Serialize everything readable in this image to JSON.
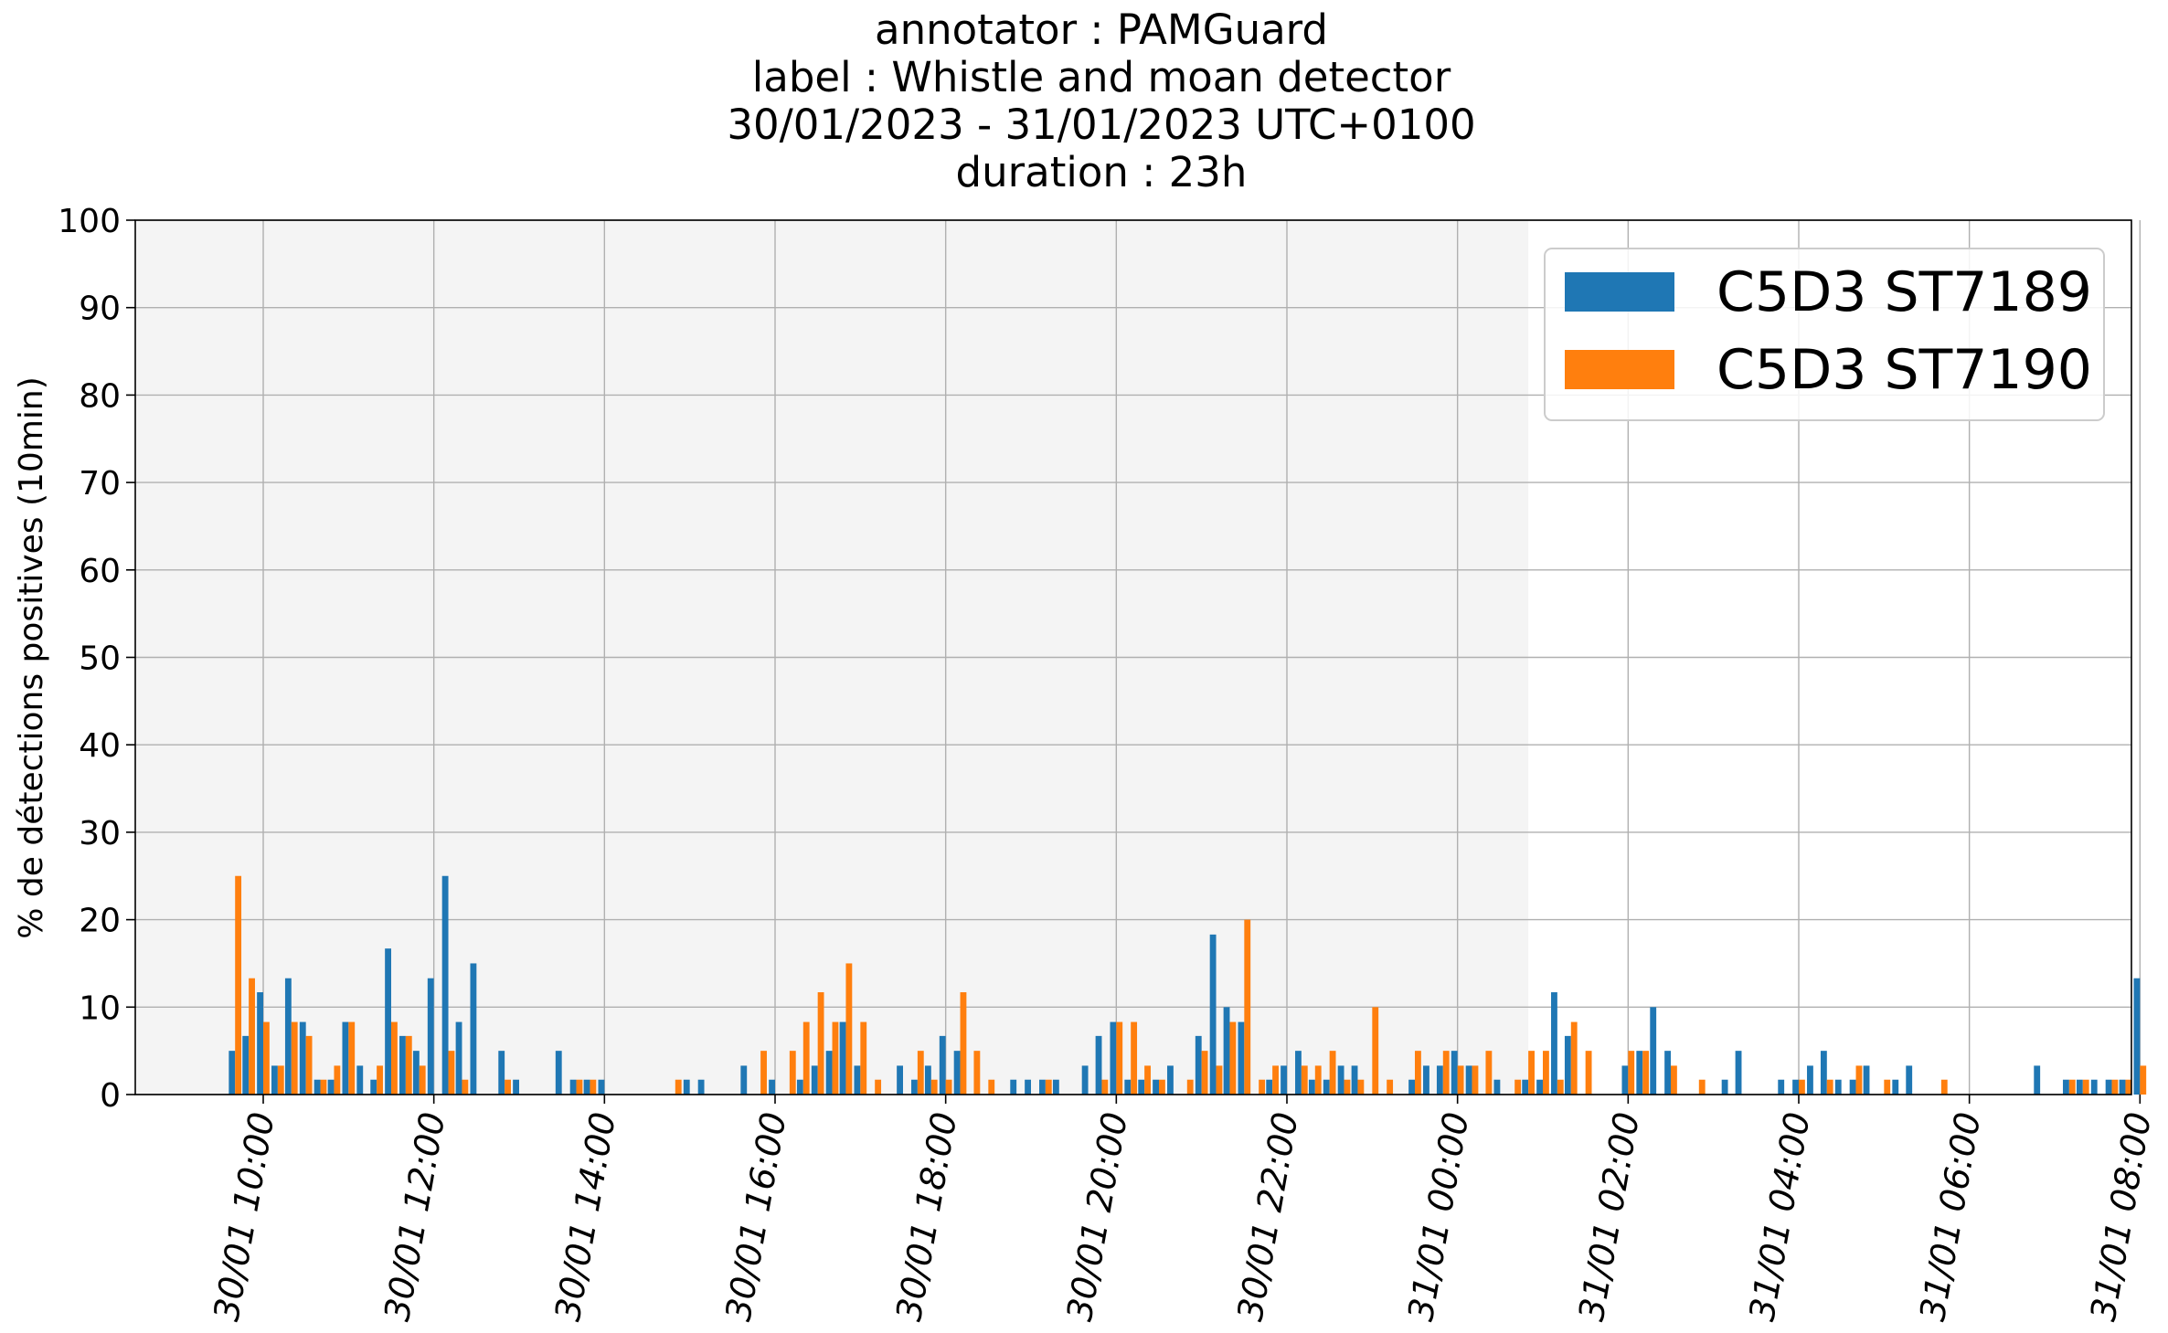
{
  "chart_data": {
    "type": "bar",
    "title_lines": [
      "annotator : PAMGuard",
      "label : Whistle and moan detector",
      "30/01/2023 - 31/01/2023 UTC+0100",
      "duration : 23h"
    ],
    "ylabel": "% de détections positives (10min)",
    "xlabel": "",
    "ylim": [
      0,
      100
    ],
    "yticks": [
      0,
      10,
      20,
      30,
      40,
      50,
      60,
      70,
      80,
      90,
      100
    ],
    "x_range_hours": [
      8.5,
      31.9
    ],
    "xticks": [
      {
        "label": "30/01 10:00",
        "hour": 10
      },
      {
        "label": "30/01 12:00",
        "hour": 12
      },
      {
        "label": "30/01 14:00",
        "hour": 14
      },
      {
        "label": "30/01 16:00",
        "hour": 16
      },
      {
        "label": "30/01 18:00",
        "hour": 18
      },
      {
        "label": "30/01 20:00",
        "hour": 20
      },
      {
        "label": "30/01 22:00",
        "hour": 22
      },
      {
        "label": "31/01 00:00",
        "hour": 24
      },
      {
        "label": "31/01 02:00",
        "hour": 26
      },
      {
        "label": "31/01 04:00",
        "hour": 28
      },
      {
        "label": "31/01 06:00",
        "hour": 30
      },
      {
        "label": "31/01 08:00",
        "hour": 32
      }
    ],
    "shaded_daylight_hours": [
      8.5,
      24.83
    ],
    "bin_minutes": 10,
    "grid": true,
    "legend_position": "top-right",
    "series": [
      {
        "name": "C5D3 ST7189",
        "color": "#1f77b4",
        "points": [
          [
            9.67,
            5
          ],
          [
            9.83,
            6.7
          ],
          [
            10.0,
            11.7
          ],
          [
            10.17,
            3.3
          ],
          [
            10.33,
            13.3
          ],
          [
            10.5,
            8.3
          ],
          [
            10.67,
            1.7
          ],
          [
            10.83,
            1.7
          ],
          [
            11.0,
            8.3
          ],
          [
            11.17,
            3.3
          ],
          [
            11.33,
            1.7
          ],
          [
            11.5,
            16.7
          ],
          [
            11.67,
            6.7
          ],
          [
            11.83,
            5
          ],
          [
            12.0,
            13.3
          ],
          [
            12.17,
            25
          ],
          [
            12.33,
            8.3
          ],
          [
            12.5,
            15
          ],
          [
            12.83,
            5
          ],
          [
            13.0,
            1.7
          ],
          [
            13.5,
            5
          ],
          [
            13.67,
            1.7
          ],
          [
            13.83,
            1.7
          ],
          [
            14.0,
            1.7
          ],
          [
            15.0,
            1.7
          ],
          [
            15.17,
            1.7
          ],
          [
            15.67,
            3.3
          ],
          [
            16.0,
            1.7
          ],
          [
            16.33,
            1.7
          ],
          [
            16.5,
            3.3
          ],
          [
            16.67,
            5
          ],
          [
            16.83,
            8.3
          ],
          [
            17.0,
            3.3
          ],
          [
            17.5,
            3.3
          ],
          [
            17.67,
            1.7
          ],
          [
            17.83,
            3.3
          ],
          [
            18.0,
            6.7
          ],
          [
            18.17,
            5
          ],
          [
            18.83,
            1.7
          ],
          [
            19.0,
            1.7
          ],
          [
            19.17,
            1.7
          ],
          [
            19.33,
            1.7
          ],
          [
            19.67,
            3.3
          ],
          [
            19.83,
            6.7
          ],
          [
            20.0,
            8.3
          ],
          [
            20.17,
            1.7
          ],
          [
            20.33,
            1.7
          ],
          [
            20.5,
            1.7
          ],
          [
            20.67,
            3.3
          ],
          [
            21.0,
            6.7
          ],
          [
            21.17,
            18.3
          ],
          [
            21.33,
            10
          ],
          [
            21.5,
            8.3
          ],
          [
            21.83,
            1.7
          ],
          [
            22.0,
            3.3
          ],
          [
            22.17,
            5
          ],
          [
            22.33,
            1.7
          ],
          [
            22.5,
            1.7
          ],
          [
            22.67,
            3.3
          ],
          [
            22.83,
            3.3
          ],
          [
            23.5,
            1.7
          ],
          [
            23.67,
            3.3
          ],
          [
            23.83,
            3.3
          ],
          [
            24.0,
            5
          ],
          [
            24.17,
            3.3
          ],
          [
            24.5,
            1.7
          ],
          [
            24.83,
            1.7
          ],
          [
            25.0,
            1.7
          ],
          [
            25.17,
            11.7
          ],
          [
            25.33,
            6.7
          ],
          [
            26.0,
            3.3
          ],
          [
            26.17,
            5
          ],
          [
            26.33,
            10
          ],
          [
            26.5,
            5
          ],
          [
            27.17,
            1.7
          ],
          [
            27.33,
            5
          ],
          [
            27.83,
            1.7
          ],
          [
            28.0,
            1.7
          ],
          [
            28.17,
            3.3
          ],
          [
            28.33,
            5
          ],
          [
            28.5,
            1.7
          ],
          [
            28.67,
            1.7
          ],
          [
            28.83,
            3.3
          ],
          [
            29.17,
            1.7
          ],
          [
            29.33,
            3.3
          ],
          [
            30.83,
            3.3
          ],
          [
            31.17,
            1.7
          ],
          [
            31.33,
            1.7
          ],
          [
            31.5,
            1.7
          ],
          [
            31.67,
            1.7
          ],
          [
            31.83,
            1.7
          ],
          [
            32.0,
            13.3
          ]
        ]
      },
      {
        "name": "C5D3 ST7190",
        "color": "#ff7f0e",
        "points": [
          [
            9.67,
            25
          ],
          [
            9.83,
            13.3
          ],
          [
            10.0,
            8.3
          ],
          [
            10.17,
            3.3
          ],
          [
            10.33,
            8.3
          ],
          [
            10.5,
            6.7
          ],
          [
            10.67,
            1.7
          ],
          [
            10.83,
            3.3
          ],
          [
            11.0,
            8.3
          ],
          [
            11.33,
            3.3
          ],
          [
            11.5,
            8.3
          ],
          [
            11.67,
            6.7
          ],
          [
            11.83,
            3.3
          ],
          [
            12.17,
            5
          ],
          [
            12.33,
            1.7
          ],
          [
            12.83,
            1.7
          ],
          [
            13.67,
            1.7
          ],
          [
            13.83,
            1.7
          ],
          [
            14.83,
            1.7
          ],
          [
            15.83,
            5
          ],
          [
            16.17,
            5
          ],
          [
            16.33,
            8.3
          ],
          [
            16.5,
            11.7
          ],
          [
            16.67,
            8.3
          ],
          [
            16.83,
            15
          ],
          [
            17.0,
            8.3
          ],
          [
            17.17,
            1.7
          ],
          [
            17.67,
            5
          ],
          [
            17.83,
            1.7
          ],
          [
            18.0,
            1.7
          ],
          [
            18.17,
            11.7
          ],
          [
            18.33,
            5
          ],
          [
            18.5,
            1.7
          ],
          [
            19.17,
            1.7
          ],
          [
            19.83,
            1.7
          ],
          [
            20.0,
            8.3
          ],
          [
            20.17,
            8.3
          ],
          [
            20.33,
            3.3
          ],
          [
            20.5,
            1.7
          ],
          [
            20.83,
            1.7
          ],
          [
            21.0,
            5
          ],
          [
            21.17,
            3.3
          ],
          [
            21.33,
            8.3
          ],
          [
            21.5,
            20
          ],
          [
            21.67,
            1.7
          ],
          [
            21.83,
            3.3
          ],
          [
            22.17,
            3.3
          ],
          [
            22.33,
            3.3
          ],
          [
            22.5,
            5
          ],
          [
            22.67,
            1.7
          ],
          [
            22.83,
            1.7
          ],
          [
            23.0,
            10
          ],
          [
            23.17,
            1.7
          ],
          [
            23.5,
            5
          ],
          [
            23.83,
            5
          ],
          [
            24.0,
            3.3
          ],
          [
            24.17,
            3.3
          ],
          [
            24.33,
            5
          ],
          [
            24.67,
            1.7
          ],
          [
            24.83,
            5
          ],
          [
            25.0,
            5
          ],
          [
            25.17,
            1.7
          ],
          [
            25.33,
            8.3
          ],
          [
            25.5,
            5
          ],
          [
            26.0,
            5
          ],
          [
            26.17,
            5
          ],
          [
            26.5,
            3.3
          ],
          [
            26.83,
            1.7
          ],
          [
            28.0,
            1.7
          ],
          [
            28.33,
            1.7
          ],
          [
            28.67,
            3.3
          ],
          [
            29.0,
            1.7
          ],
          [
            29.67,
            1.7
          ],
          [
            31.17,
            1.7
          ],
          [
            31.33,
            1.7
          ],
          [
            31.67,
            1.7
          ],
          [
            31.83,
            1.7
          ],
          [
            32.0,
            3.3
          ]
        ]
      }
    ]
  }
}
